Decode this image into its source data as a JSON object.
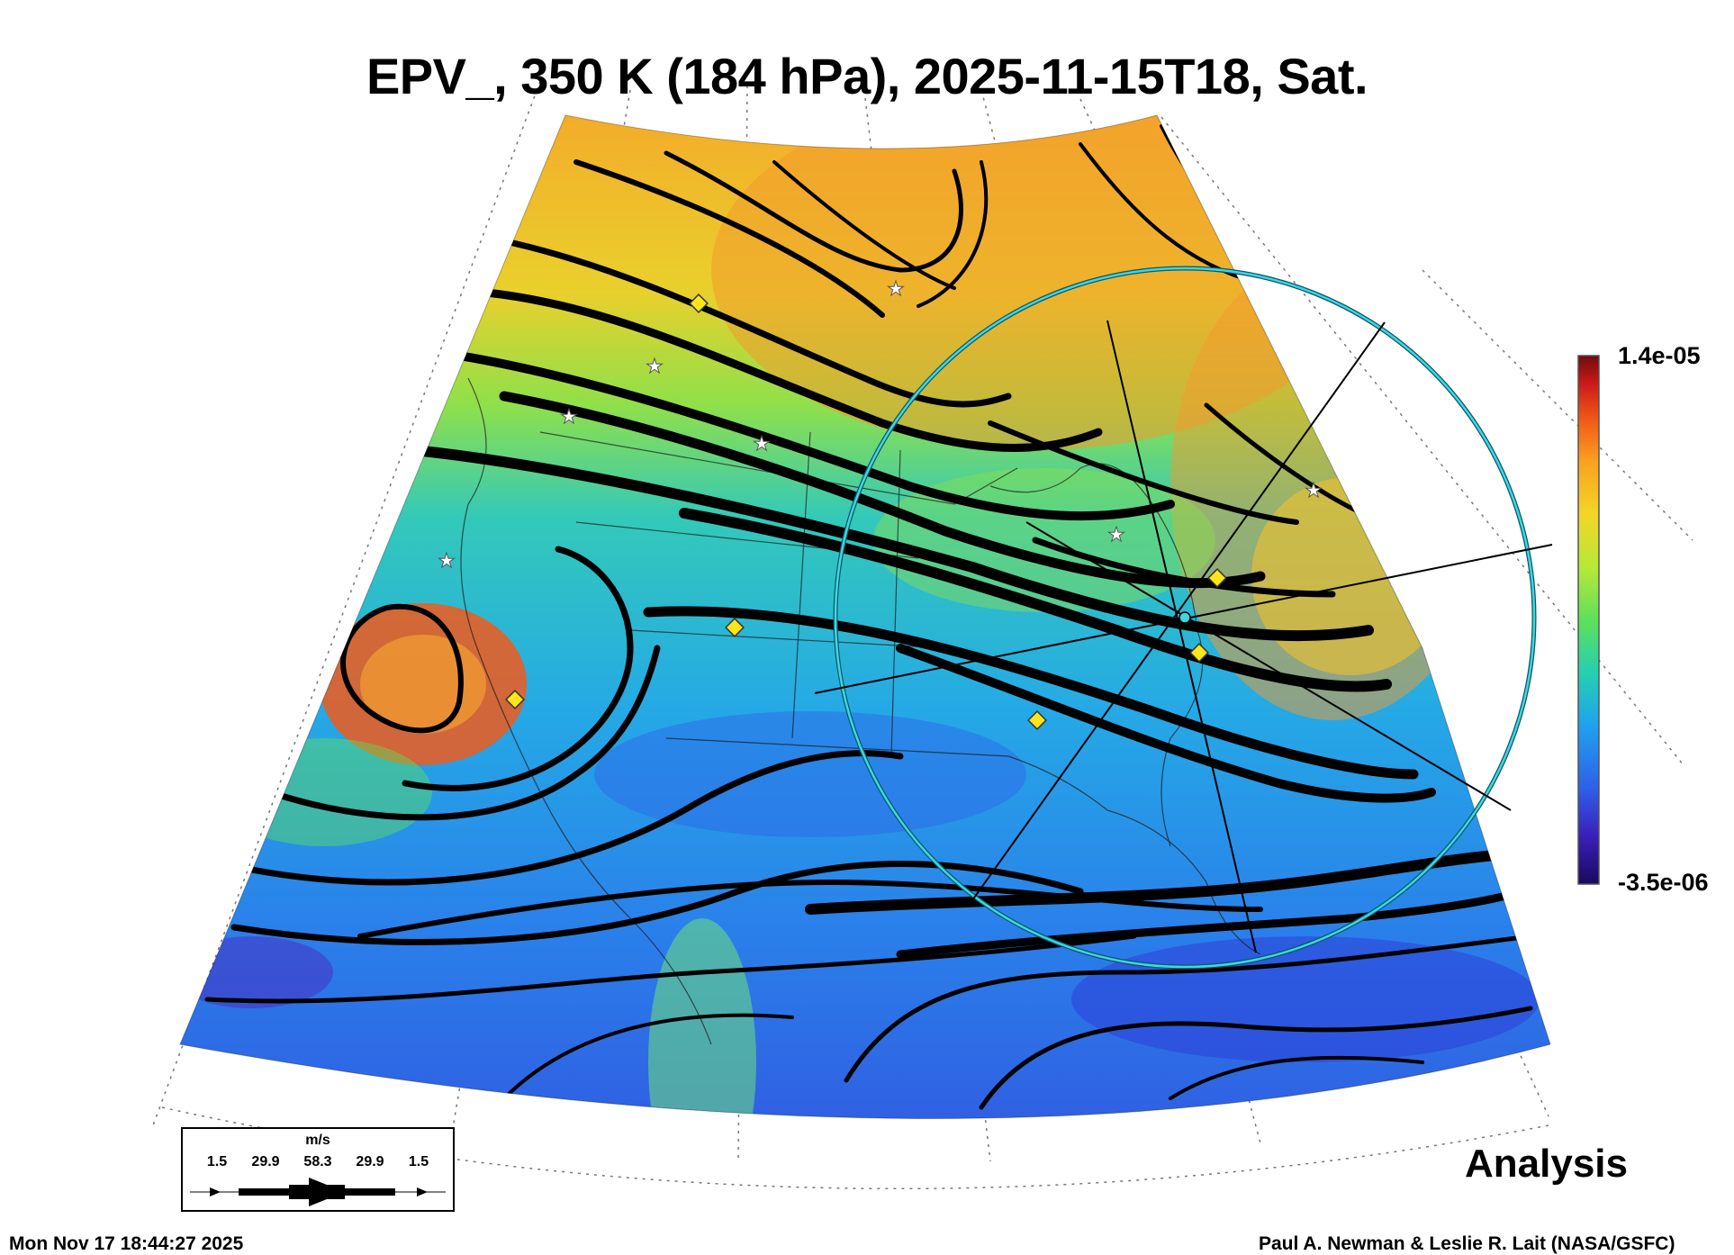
{
  "title": "EPV_, 350 K (184 hPa), 2025-11-15T18, Sat.",
  "colorbar": {
    "max_label": "1.4e-05",
    "min_label": "-3.5e-06",
    "colors": [
      "#1a0a5c",
      "#3a1fb8",
      "#2f5fe8",
      "#1fa2ee",
      "#25d0b0",
      "#5fe05a",
      "#b8e838",
      "#f2d628",
      "#fba020",
      "#f05818",
      "#c81818",
      "#6e0c0c"
    ]
  },
  "legend": {
    "unit": "m/s",
    "values": [
      "1.5",
      "29.9",
      "58.3",
      "29.9",
      "1.5"
    ]
  },
  "analysis_label": "Analysis",
  "timestamp": "Mon Nov 17 18:44:27 2025",
  "credit": "Paul A. Newman & Leslie R. Lait (NASA/GSFC)"
}
